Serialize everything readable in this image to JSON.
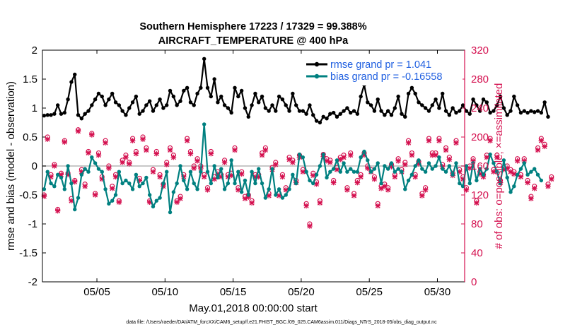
{
  "chart_data": {
    "type": "line",
    "title": "Southern Hemisphere 17223 / 17329 = 99.388%",
    "subtitle": "AIRCRAFT_TEMPERATURE @ 400 hPa",
    "xlabel": "May.01,2018 00:00:00 start",
    "ylabel": "rmse and bias (model - observation)",
    "y2label": "# of obs: o=possible; ×=assimilated",
    "xlim": [
      1,
      32
    ],
    "ylim": [
      -2,
      2
    ],
    "y2lim": [
      0,
      320
    ],
    "x_ticks": [
      {
        "value": 5,
        "label": "05/05"
      },
      {
        "value": 10,
        "label": "05/10"
      },
      {
        "value": 15,
        "label": "05/15"
      },
      {
        "value": 20,
        "label": "05/20"
      },
      {
        "value": 25,
        "label": "05/25"
      },
      {
        "value": 30,
        "label": "05/30"
      }
    ],
    "y_ticks": [
      "-2",
      "-1.5",
      "-1",
      "-0.5",
      "0",
      "0.5",
      "1",
      "1.5",
      "2"
    ],
    "y2_ticks": [
      "0",
      "40",
      "80",
      "120",
      "160",
      "200",
      "240",
      "280",
      "320"
    ],
    "legend": [
      {
        "label": "rmse grand pr = 1.041",
        "color": "#000000"
      },
      {
        "label": "bias grand pr = -0.16558",
        "color": "#008080"
      }
    ],
    "footnote": "data file: /Users/raeder/DAI/ATM_forcXX/CAM6_setup/f.e21.FHIST_BGC.f09_025.CAM6assim.011/Diags_NTrS_2018-05/obs_diag_output.nc",
    "colors": {
      "rmse": "#000000",
      "bias": "#008080",
      "obs": "#d4104f",
      "legend_text": "#1f5fe0"
    },
    "series": [
      {
        "name": "rmse",
        "x_start": 1.125,
        "x_step": 0.25,
        "values": [
          0.87,
          0.88,
          0.88,
          0.9,
          1.05,
          0.9,
          0.92,
          1.15,
          1.45,
          1.58,
          0.88,
          0.82,
          0.9,
          0.95,
          1.05,
          1.15,
          1.25,
          1.2,
          1.05,
          1.15,
          1.25,
          1.1,
          1.05,
          0.95,
          0.88,
          1.0,
          1.1,
          1.2,
          0.9,
          0.95,
          1.05,
          1.12,
          0.95,
          1.05,
          1.15,
          1.0,
          1.05,
          1.3,
          1.2,
          1.05,
          1.12,
          1.3,
          1.35,
          1.1,
          1.05,
          1.25,
          1.35,
          1.85,
          1.35,
          1.2,
          1.5,
          1.1,
          1.2,
          1.05,
          1.0,
          0.92,
          1.35,
          1.2,
          1.3,
          1.0,
          0.85,
          1.05,
          1.25,
          1.1,
          1.2,
          1.0,
          0.95,
          1.05,
          0.95,
          1.2,
          1.15,
          1.05,
          0.95,
          1.25,
          1.05,
          0.95,
          0.95,
          0.9,
          1.05,
          0.88,
          0.78,
          0.75,
          0.85,
          0.82,
          0.9,
          0.92,
          0.85,
          0.9,
          0.95,
          1.0,
          0.92,
          0.95,
          0.9,
          1.2,
          1.4,
          1.1,
          1.05,
          0.95,
          1.15,
          0.95,
          0.88,
          0.95,
          0.88,
          1.0,
          1.2,
          0.9,
          0.85,
          1.25,
          1.35,
          1.25,
          1.1,
          1.05,
          1.0,
          0.95,
          1.05,
          1.15,
          1.0,
          1.25,
          0.95,
          0.88,
          1.0,
          0.92,
          0.95,
          1.05,
          0.95,
          0.9,
          1.15,
          1.05,
          0.95,
          1.15,
          1.1,
          0.92,
          0.95,
          1.05,
          1.2,
          1.0,
          0.88,
          0.95,
          1.2,
          1.05,
          0.92,
          0.95,
          0.92,
          0.95,
          0.93,
          0.95,
          0.92,
          1.1,
          0.85
        ]
      },
      {
        "name": "bias",
        "x_start": 1.125,
        "x_step": 0.25,
        "values": [
          -0.4,
          -0.1,
          -0.3,
          -0.35,
          -0.15,
          -0.2,
          -0.4,
          0.0,
          -0.3,
          -0.75,
          -0.55,
          -0.15,
          -0.05,
          -0.1,
          0.15,
          0.05,
          -0.05,
          -0.1,
          -0.4,
          -0.65,
          -0.6,
          -0.5,
          -0.1,
          -0.3,
          -0.25,
          -0.3,
          -0.4,
          -0.15,
          -0.35,
          -0.3,
          -0.2,
          -0.5,
          -0.7,
          -0.6,
          -0.55,
          -0.3,
          -0.1,
          -0.8,
          -0.45,
          -0.3,
          0.0,
          -0.25,
          -0.4,
          -0.1,
          -0.3,
          -0.4,
          -0.1,
          0.72,
          -0.1,
          -0.3,
          0.0,
          -0.2,
          -0.05,
          -0.4,
          -0.3,
          0.1,
          -0.3,
          -0.1,
          -0.45,
          -0.25,
          -0.5,
          -0.1,
          -0.3,
          -0.05,
          -0.3,
          -0.55,
          -0.4,
          -0.05,
          -0.5,
          -0.4,
          -0.55,
          -0.5,
          -0.4,
          -0.15,
          -0.3,
          0.2,
          0.15,
          -0.1,
          -0.25,
          -0.3,
          -0.15,
          0.0,
          0.2,
          -0.2,
          -0.1,
          -0.05,
          0.1,
          -0.1,
          0.05,
          -0.1,
          -0.05,
          -0.1,
          -0.1,
          0.15,
          0.25,
          0.1,
          -0.1,
          -0.05,
          0.05,
          -0.3,
          0.0,
          -0.05,
          0.05,
          -0.1,
          -0.05,
          -0.1,
          -0.4,
          -0.25,
          -0.15,
          0.0,
          0.1,
          -0.05,
          -0.1,
          0.05,
          -0.05,
          0.0,
          0.15,
          -0.05,
          -0.1,
          0.0,
          -0.15,
          0.05,
          -0.3,
          -0.35,
          0.0,
          -0.3,
          0.05,
          -0.25,
          -0.05,
          -0.15,
          -0.05,
          0.2,
          0.05,
          -0.1,
          -0.3,
          0.1,
          -0.2,
          -0.45,
          -0.35,
          -0.15,
          -0.05,
          0.05,
          -0.15,
          -0.1,
          -0.05,
          -0.15,
          -0.25
        ]
      },
      {
        "name": "obs_possible",
        "x_start": 1.125,
        "x_step": 0.25,
        "values": [
          120,
          200,
          148,
          162,
          100,
          150,
          195,
          150,
          115,
          140,
          210,
          155,
          135,
          180,
          205,
          122,
          178,
          145,
          195,
          160,
          132,
          148,
          112,
          168,
          175,
          165,
          198,
          180,
          143,
          200,
          185,
          112,
          155,
          180,
          148,
          135,
          165,
          185,
          175,
          112,
          118,
          148,
          198,
          180,
          160,
          170,
          160,
          148,
          130,
          180,
          145,
          152,
          148,
          168,
          148,
          150,
          185,
          130,
          152,
          118,
          120,
          112,
          148,
          148,
          178,
          185,
          122,
          158,
          165,
          122,
          148,
          130,
          172,
          168,
          140,
          175,
          155,
          108,
          80,
          150,
          138,
          112,
          176,
          170,
          168,
          140,
          158,
          172,
          175,
          130,
          178,
          122,
          140,
          148,
          178,
          160,
          155,
          145,
          108,
          132,
          135,
          130,
          162,
          148,
          170,
          155,
          165,
          195,
          178,
          148,
          166,
          122,
          130,
          198,
          178,
          178,
          198,
          162,
          185,
          172,
          150,
          195,
          155,
          145,
          130,
          160,
          170,
          112,
          152,
          148,
          175,
          198,
          155,
          175,
          140,
          158,
          160,
          155,
          152,
          170,
          148,
          170,
          140,
          118,
          132,
          185,
          198,
          190,
          135,
          145
        ]
      },
      {
        "name": "obs_assimilated",
        "x_start": 1.125,
        "x_step": 0.25,
        "values": [
          118,
          197,
          145,
          160,
          98,
          148,
          193,
          148,
          112,
          138,
          208,
          152,
          132,
          178,
          203,
          120,
          175,
          142,
          192,
          157,
          129,
          145,
          110,
          165,
          172,
          163,
          195,
          177,
          140,
          197,
          182,
          110,
          152,
          177,
          145,
          132,
          162,
          182,
          172,
          110,
          115,
          145,
          195,
          177,
          157,
          167,
          157,
          145,
          127,
          177,
          142,
          149,
          145,
          165,
          145,
          147,
          182,
          127,
          149,
          115,
          117,
          109,
          145,
          145,
          175,
          182,
          119,
          155,
          162,
          119,
          145,
          127,
          169,
          165,
          137,
          172,
          152,
          105,
          77,
          147,
          135,
          109,
          173,
          167,
          165,
          137,
          155,
          169,
          172,
          127,
          175,
          119,
          137,
          145,
          175,
          157,
          152,
          142,
          105,
          129,
          132,
          127,
          159,
          145,
          167,
          152,
          162,
          192,
          175,
          145,
          163,
          119,
          127,
          195,
          175,
          175,
          195,
          159,
          182,
          169,
          147,
          192,
          152,
          142,
          127,
          157,
          167,
          109,
          149,
          145,
          172,
          195,
          152,
          172,
          137,
          155,
          157,
          152,
          149,
          167,
          145,
          167,
          137,
          115,
          129,
          182,
          195,
          187,
          132,
          142
        ]
      }
    ]
  }
}
